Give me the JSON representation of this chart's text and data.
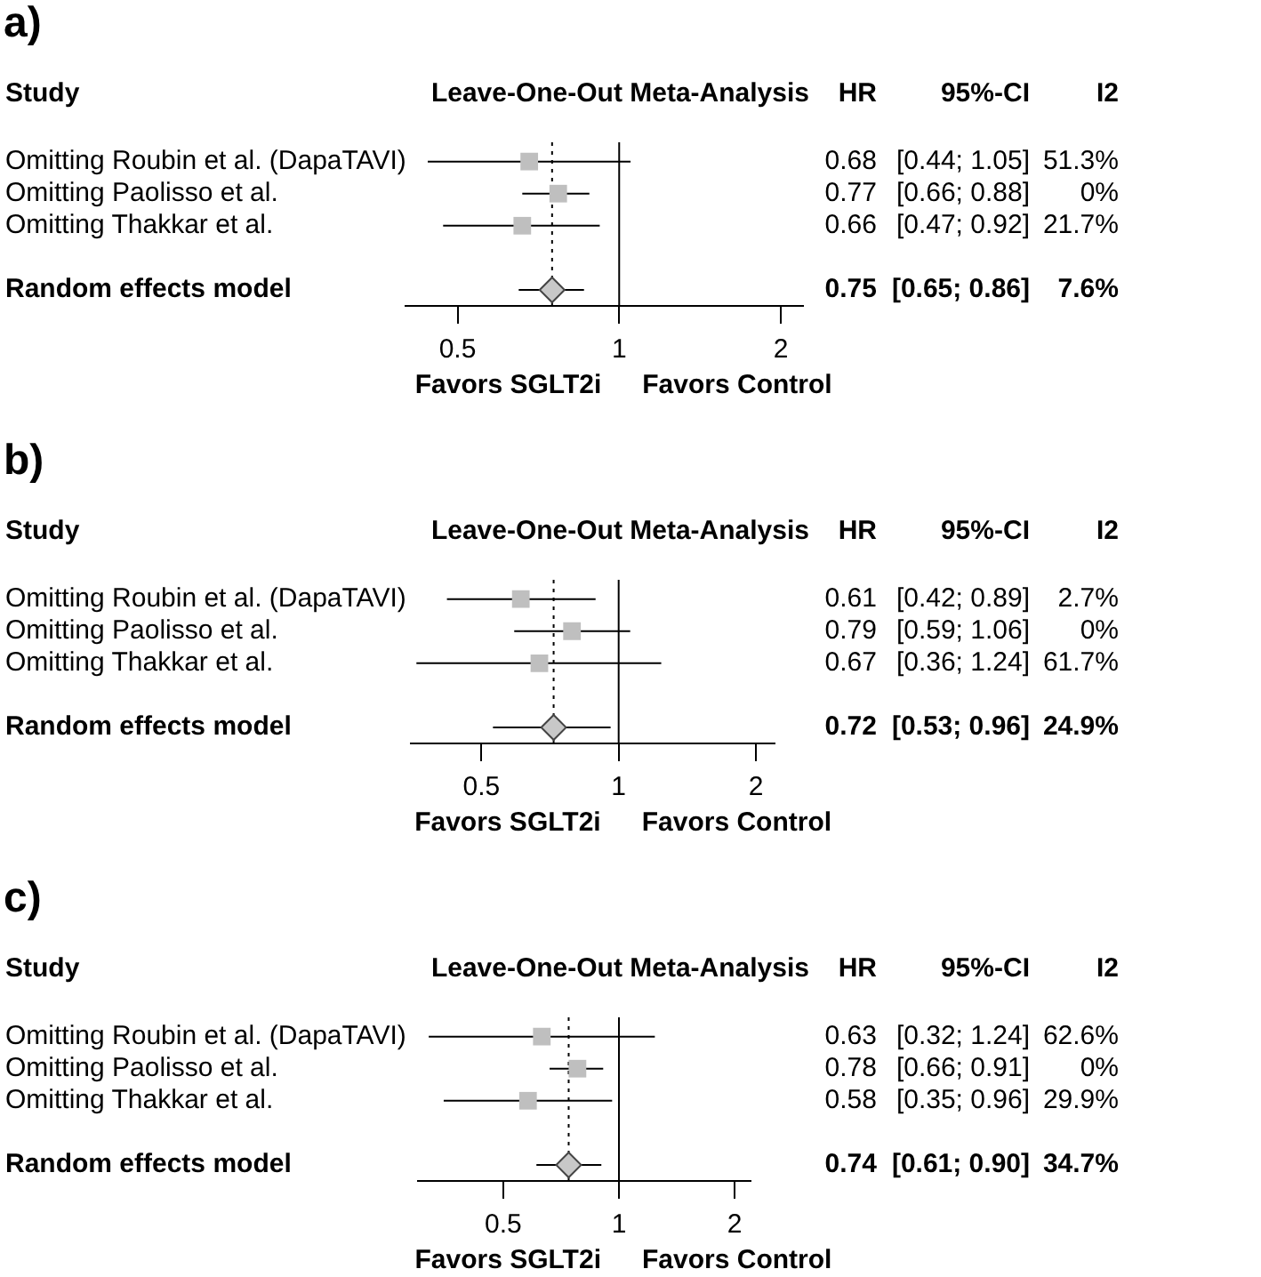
{
  "chart_data": [
    {
      "type": "scatter",
      "title": "a)",
      "ylabel": "Study",
      "orientation": "horizontal",
      "log": "x",
      "xlim": [
        0.4,
        2.2
      ],
      "xticks": [
        0.5,
        1,
        2
      ],
      "grid": false,
      "legend": false,
      "categories": [
        "Omitting Roubin et al. (DapaTAVI)",
        "Omitting Paolisso et al.",
        "Omitting Thakkar et al.",
        "Random effects model"
      ],
      "series": [
        {
          "marker": "square",
          "color": "#bfbfbf",
          "values": [
            0.68,
            0.77,
            0.66,
            null
          ],
          "errors": [
            [
              0.44,
              1.05
            ],
            [
              0.66,
              0.88
            ],
            [
              0.47,
              0.92
            ],
            null
          ],
          "value_labels": [
            "0.68",
            "0.77",
            "0.66",
            null
          ]
        },
        {
          "marker": "diamond",
          "color": "#c8c8c8",
          "values": [
            null,
            null,
            null,
            0.75
          ],
          "errors": [
            null,
            null,
            null,
            [
              0.65,
              0.86
            ]
          ]
        }
      ],
      "ref_lines": [
        {
          "axis": "x",
          "value": 1,
          "line_style": "solid",
          "color": "#000000"
        },
        {
          "axis": "x",
          "value": 0.75,
          "line_style": "dotted",
          "color": "#000000"
        }
      ],
      "annotations": [
        "Leave-One-Out Meta-Analysis",
        "HR",
        "95%-CI",
        "I2",
        "Favors SGLT2i",
        "Favors Control",
        "[0.44; 1.05]",
        "51.3%",
        "[0.66; 0.88]",
        "0%",
        "[0.47; 0.92]",
        "21.7%",
        "0.75",
        "[0.65; 0.86]",
        "7.6%"
      ]
    },
    {
      "type": "scatter",
      "title": "b)",
      "ylabel": "Study",
      "orientation": "horizontal",
      "log": "x",
      "xlim": [
        0.35,
        2.2
      ],
      "xticks": [
        0.5,
        1,
        2
      ],
      "grid": false,
      "legend": false,
      "categories": [
        "Omitting Roubin et al. (DapaTAVI)",
        "Omitting Paolisso et al.",
        "Omitting Thakkar et al.",
        "Random effects model"
      ],
      "series": [
        {
          "marker": "square",
          "color": "#bfbfbf",
          "values": [
            0.61,
            0.79,
            0.67,
            null
          ],
          "errors": [
            [
              0.42,
              0.89
            ],
            [
              0.59,
              1.06
            ],
            [
              0.36,
              1.24
            ],
            null
          ],
          "value_labels": [
            "0.61",
            "0.79",
            "0.67",
            null
          ]
        },
        {
          "marker": "diamond",
          "color": "#c8c8c8",
          "values": [
            null,
            null,
            null,
            0.72
          ],
          "errors": [
            null,
            null,
            null,
            [
              0.53,
              0.96
            ]
          ]
        }
      ],
      "ref_lines": [
        {
          "axis": "x",
          "value": 1,
          "line_style": "solid",
          "color": "#000000"
        },
        {
          "axis": "x",
          "value": 0.72,
          "line_style": "dotted",
          "color": "#000000"
        }
      ],
      "annotations": [
        "Leave-One-Out Meta-Analysis",
        "HR",
        "95%-CI",
        "I2",
        "Favors SGLT2i",
        "Favors Control",
        "[0.42; 0.89]",
        "2.7%",
        "[0.59; 1.06]",
        "0%",
        "[0.36; 1.24]",
        "61.7%",
        "0.72",
        "[0.53; 0.96]",
        "24.9%"
      ]
    },
    {
      "type": "scatter",
      "title": "c)",
      "ylabel": "Study",
      "orientation": "horizontal",
      "log": "x",
      "xlim": [
        0.3,
        2.2
      ],
      "xticks": [
        0.5,
        1,
        2
      ],
      "grid": false,
      "legend": false,
      "categories": [
        "Omitting Roubin et al. (DapaTAVI)",
        "Omitting Paolisso et al.",
        "Omitting Thakkar et al.",
        "Random effects model"
      ],
      "series": [
        {
          "marker": "square",
          "color": "#bfbfbf",
          "values": [
            0.63,
            0.78,
            0.58,
            null
          ],
          "errors": [
            [
              0.32,
              1.24
            ],
            [
              0.66,
              0.91
            ],
            [
              0.35,
              0.96
            ],
            null
          ],
          "value_labels": [
            "0.63",
            "0.78",
            "0.58",
            null
          ]
        },
        {
          "marker": "diamond",
          "color": "#c8c8c8",
          "values": [
            null,
            null,
            null,
            0.74
          ],
          "errors": [
            null,
            null,
            null,
            [
              0.61,
              0.9
            ]
          ]
        }
      ],
      "ref_lines": [
        {
          "axis": "x",
          "value": 1,
          "line_style": "solid",
          "color": "#000000"
        },
        {
          "axis": "x",
          "value": 0.74,
          "line_style": "dotted",
          "color": "#000000"
        }
      ],
      "annotations": [
        "Leave-One-Out Meta-Analysis",
        "HR",
        "95%-CI",
        "I2",
        "Favors SGLT2i",
        "Favors Control",
        "[0.32; 1.24]",
        "62.6%",
        "[0.66; 0.91]",
        "0%",
        "[0.35; 0.96]",
        "29.9%",
        "0.74",
        "[0.61; 0.90]",
        "34.7%"
      ]
    }
  ]
}
